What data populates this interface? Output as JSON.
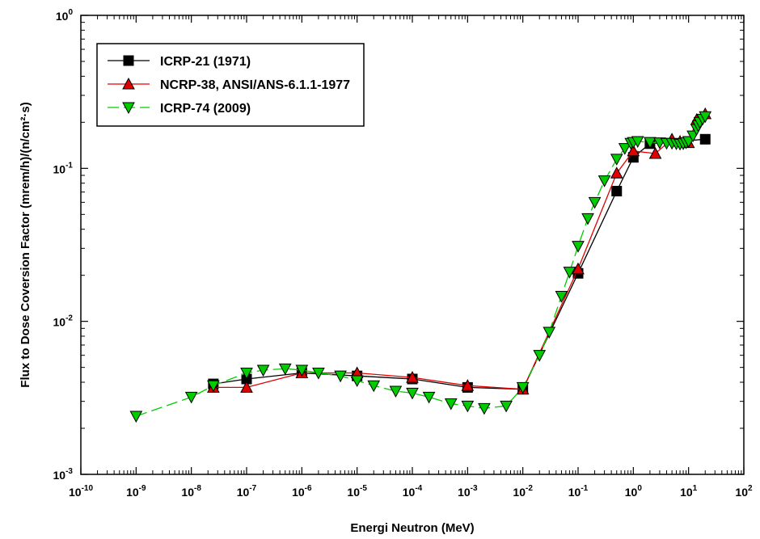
{
  "chart_data": {
    "type": "line",
    "x_scale": "log",
    "y_scale": "log",
    "xlim": [
      1e-10,
      100
    ],
    "ylim": [
      0.001,
      1
    ],
    "xlabel": "Energi Neutron (MeV)",
    "ylabel": "Flux to Dose Coversion Factor (mrem/h)/(n/cm²·s)",
    "x_tick_labels": [
      {
        "base": "10",
        "exp": "-10"
      },
      {
        "base": "10",
        "exp": "-9"
      },
      {
        "base": "10",
        "exp": "-8"
      },
      {
        "base": "10",
        "exp": "-7"
      },
      {
        "base": "10",
        "exp": "-6"
      },
      {
        "base": "10",
        "exp": "-5"
      },
      {
        "base": "10",
        "exp": "-4"
      },
      {
        "base": "10",
        "exp": "-3"
      },
      {
        "base": "10",
        "exp": "-2"
      },
      {
        "base": "10",
        "exp": "-1"
      },
      {
        "base": "10",
        "exp": "0"
      },
      {
        "base": "10",
        "exp": "1"
      },
      {
        "base": "10",
        "exp": "2"
      }
    ],
    "y_tick_labels": [
      {
        "base": "10",
        "exp": "-3"
      },
      {
        "base": "10",
        "exp": "-2"
      },
      {
        "base": "10",
        "exp": "-1"
      },
      {
        "base": "10",
        "exp": "0"
      }
    ],
    "legend_position": "top-left",
    "series": [
      {
        "name": "ICRP-21 (1971)",
        "color": "#000000",
        "marker": "square",
        "line": "solid",
        "x": [
          2.5e-08,
          1e-07,
          1e-06,
          1e-05,
          0.0001,
          0.001,
          0.01,
          0.1,
          0.5,
          1,
          2,
          20
        ],
        "y": [
          0.0039,
          0.0042,
          0.0046,
          0.0044,
          0.0042,
          0.0037,
          0.0036,
          0.0206,
          0.071,
          0.118,
          0.145,
          0.155
        ]
      },
      {
        "name": "NCRP-38, ANSI/ANS-6.1.1-1977",
        "color": "#e00000",
        "marker": "triangle-up",
        "line": "solid",
        "x": [
          2.5e-08,
          1e-07,
          1e-06,
          1e-05,
          0.0001,
          0.001,
          0.01,
          0.1,
          0.5,
          1,
          2.5,
          5,
          7,
          10,
          14,
          20
        ],
        "y": [
          0.0037,
          0.0037,
          0.0046,
          0.0046,
          0.0043,
          0.0038,
          0.0036,
          0.022,
          0.093,
          0.13,
          0.125,
          0.155,
          0.15,
          0.147,
          0.208,
          0.227
        ]
      },
      {
        "name": "ICRP-74 (2009)",
        "color": "#00cc00",
        "marker": "triangle-down",
        "line": "dashed",
        "x": [
          1e-09,
          1e-08,
          2.5e-08,
          1e-07,
          2e-07,
          5e-07,
          1e-06,
          2e-06,
          5e-06,
          1e-05,
          2e-05,
          5e-05,
          0.0001,
          0.0002,
          0.0005,
          0.001,
          0.002,
          0.005,
          0.01,
          0.02,
          0.03,
          0.05,
          0.07,
          0.1,
          0.15,
          0.2,
          0.3,
          0.5,
          0.7,
          0.9,
          1,
          1.2,
          2,
          3,
          4,
          5,
          6,
          7,
          8,
          9,
          10,
          12,
          14,
          15,
          16,
          18,
          20
        ],
        "y": [
          0.0024,
          0.0032,
          0.0038,
          0.0046,
          0.0048,
          0.0049,
          0.0048,
          0.0046,
          0.0044,
          0.0041,
          0.0038,
          0.0035,
          0.0034,
          0.0032,
          0.0029,
          0.0028,
          0.0027,
          0.0028,
          0.0037,
          0.006,
          0.0085,
          0.0146,
          0.021,
          0.031,
          0.047,
          0.06,
          0.083,
          0.115,
          0.135,
          0.146,
          0.148,
          0.15,
          0.148,
          0.147,
          0.146,
          0.146,
          0.145,
          0.144,
          0.145,
          0.147,
          0.15,
          0.163,
          0.18,
          0.19,
          0.2,
          0.21,
          0.218
        ]
      }
    ]
  }
}
